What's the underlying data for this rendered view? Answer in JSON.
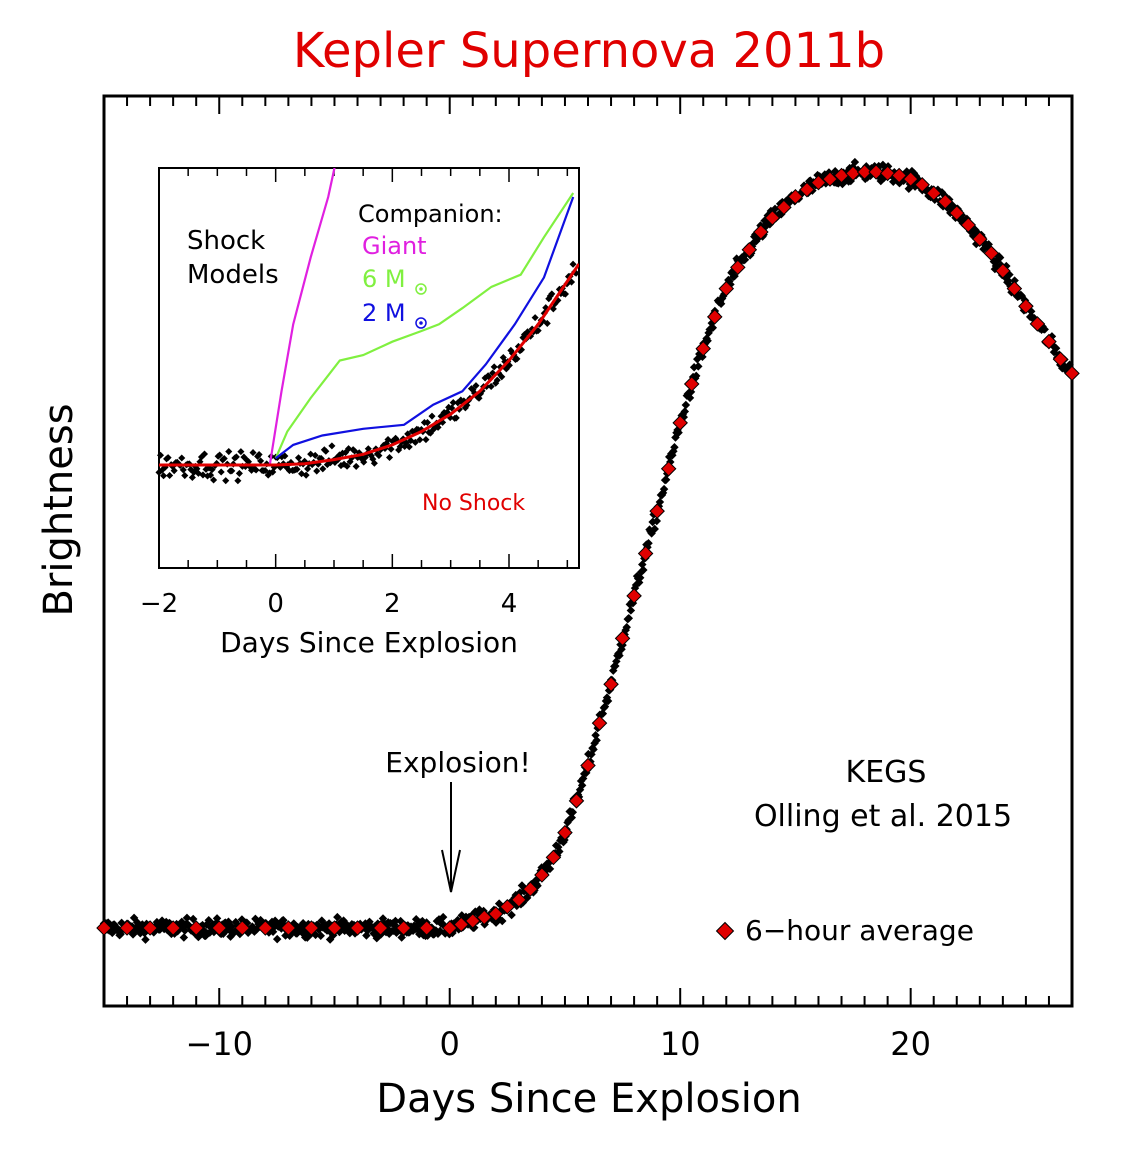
{
  "chart_data": [
    {
      "type": "scatter",
      "title": "Kepler Supernova 2011b",
      "xlabel": "Days Since Explosion",
      "ylabel": "Brightness",
      "xlim": [
        -15,
        27
      ],
      "ylim": [
        0,
        1.1
      ],
      "x_ticks": [
        -10,
        0,
        10,
        20
      ],
      "grid": false,
      "annotations": {
        "explosion": "Explosion!",
        "credit_line1": "KEGS",
        "credit_line2": "Olling et al. 2015",
        "legend_avg": "6−hour average"
      },
      "series": [
        {
          "name": "6−hour average",
          "color": "#e00000",
          "marker": "diamond",
          "points": [
            [
              -15,
              0.0
            ],
            [
              -14,
              0.0
            ],
            [
              -13,
              0.0
            ],
            [
              -12,
              0.0
            ],
            [
              -11,
              0.0
            ],
            [
              -10,
              0.0
            ],
            [
              -9,
              0.0
            ],
            [
              -8,
              0.0
            ],
            [
              -7,
              0.0
            ],
            [
              -6,
              0.0
            ],
            [
              -5,
              0.0
            ],
            [
              -4,
              0.0
            ],
            [
              -3,
              0.0
            ],
            [
              -2,
              0.0
            ],
            [
              -1,
              0.0
            ],
            [
              0,
              0.0
            ],
            [
              0.5,
              0.005
            ],
            [
              1,
              0.01
            ],
            [
              1.5,
              0.015
            ],
            [
              2,
              0.02
            ],
            [
              2.5,
              0.03
            ],
            [
              3,
              0.04
            ],
            [
              3.5,
              0.055
            ],
            [
              4,
              0.075
            ],
            [
              4.5,
              0.1
            ],
            [
              5,
              0.135
            ],
            [
              5.5,
              0.18
            ],
            [
              6,
              0.23
            ],
            [
              6.5,
              0.29
            ],
            [
              7,
              0.345
            ],
            [
              7.5,
              0.41
            ],
            [
              8,
              0.47
            ],
            [
              8.5,
              0.53
            ],
            [
              9,
              0.59
            ],
            [
              9.5,
              0.65
            ],
            [
              10,
              0.715
            ],
            [
              10.5,
              0.77
            ],
            [
              11,
              0.82
            ],
            [
              11.5,
              0.865
            ],
            [
              12,
              0.905
            ],
            [
              12.5,
              0.935
            ],
            [
              13,
              0.96
            ],
            [
              13.5,
              0.985
            ],
            [
              14,
              1.005
            ],
            [
              14.5,
              1.02
            ],
            [
              15,
              1.035
            ],
            [
              15.5,
              1.045
            ],
            [
              16,
              1.055
            ],
            [
              16.5,
              1.06
            ],
            [
              17,
              1.065
            ],
            [
              17.5,
              1.068
            ],
            [
              18,
              1.07
            ],
            [
              18.5,
              1.07
            ],
            [
              19,
              1.068
            ],
            [
              19.5,
              1.065
            ],
            [
              20,
              1.06
            ],
            [
              20.5,
              1.052
            ],
            [
              21,
              1.04
            ],
            [
              21.5,
              1.028
            ],
            [
              22,
              1.012
            ],
            [
              22.5,
              0.995
            ],
            [
              23,
              0.975
            ],
            [
              23.5,
              0.955
            ],
            [
              24,
              0.93
            ],
            [
              24.5,
              0.905
            ],
            [
              25,
              0.88
            ],
            [
              25.5,
              0.855
            ],
            [
              26,
              0.83
            ],
            [
              26.5,
              0.805
            ],
            [
              27,
              0.785
            ]
          ]
        }
      ]
    },
    {
      "type": "line",
      "xlabel": "Days Since Explosion",
      "xlim": [
        -2,
        5.2
      ],
      "ylim": [
        -0.35,
        2.4
      ],
      "x_ticks": [
        -2,
        0,
        2,
        4
      ],
      "text_labels": {
        "shock_line1": "Shock",
        "shock_line2": "Models",
        "companion": "Companion:",
        "giant": "Giant",
        "six": "6 M",
        "two": "2 M",
        "no_shock": "No Shock"
      },
      "series": [
        {
          "name": "Giant",
          "color": "#e020e0",
          "points": [
            [
              -0.1,
              0.0
            ],
            [
              0.1,
              0.55
            ],
            [
              0.3,
              1.05
            ],
            [
              0.6,
              1.55
            ],
            [
              0.9,
              2.0
            ],
            [
              1.1,
              2.4
            ]
          ]
        },
        {
          "name": "6 M⊙",
          "color": "#80f040",
          "points": [
            [
              0,
              0.05
            ],
            [
              0.2,
              0.25
            ],
            [
              0.6,
              0.5
            ],
            [
              1.1,
              0.78
            ],
            [
              1.5,
              0.82
            ],
            [
              2,
              0.92
            ],
            [
              2.5,
              1.0
            ],
            [
              2.8,
              1.05
            ],
            [
              3.2,
              1.17
            ],
            [
              3.7,
              1.33
            ],
            [
              4.2,
              1.42
            ],
            [
              4.6,
              1.7
            ],
            [
              5.1,
              2.03
            ]
          ]
        },
        {
          "name": "2 M⊙",
          "color": "#1010e0",
          "points": [
            [
              0,
              0.05
            ],
            [
              0.3,
              0.15
            ],
            [
              0.8,
              0.22
            ],
            [
              1.5,
              0.27
            ],
            [
              2.2,
              0.3
            ],
            [
              2.7,
              0.45
            ],
            [
              3.2,
              0.55
            ],
            [
              3.6,
              0.75
            ],
            [
              4.1,
              1.05
            ],
            [
              4.6,
              1.4
            ],
            [
              5.1,
              2.0
            ]
          ]
        },
        {
          "name": "No Shock",
          "color": "#e00000",
          "points": [
            [
              -2,
              0.0
            ],
            [
              -1,
              0.0
            ],
            [
              0,
              0.0
            ],
            [
              0.5,
              0.01
            ],
            [
              1,
              0.04
            ],
            [
              1.5,
              0.08
            ],
            [
              2,
              0.15
            ],
            [
              2.5,
              0.25
            ],
            [
              3,
              0.38
            ],
            [
              3.5,
              0.55
            ],
            [
              4,
              0.78
            ],
            [
              4.5,
              1.05
            ],
            [
              5.2,
              1.5
            ]
          ]
        }
      ]
    }
  ]
}
